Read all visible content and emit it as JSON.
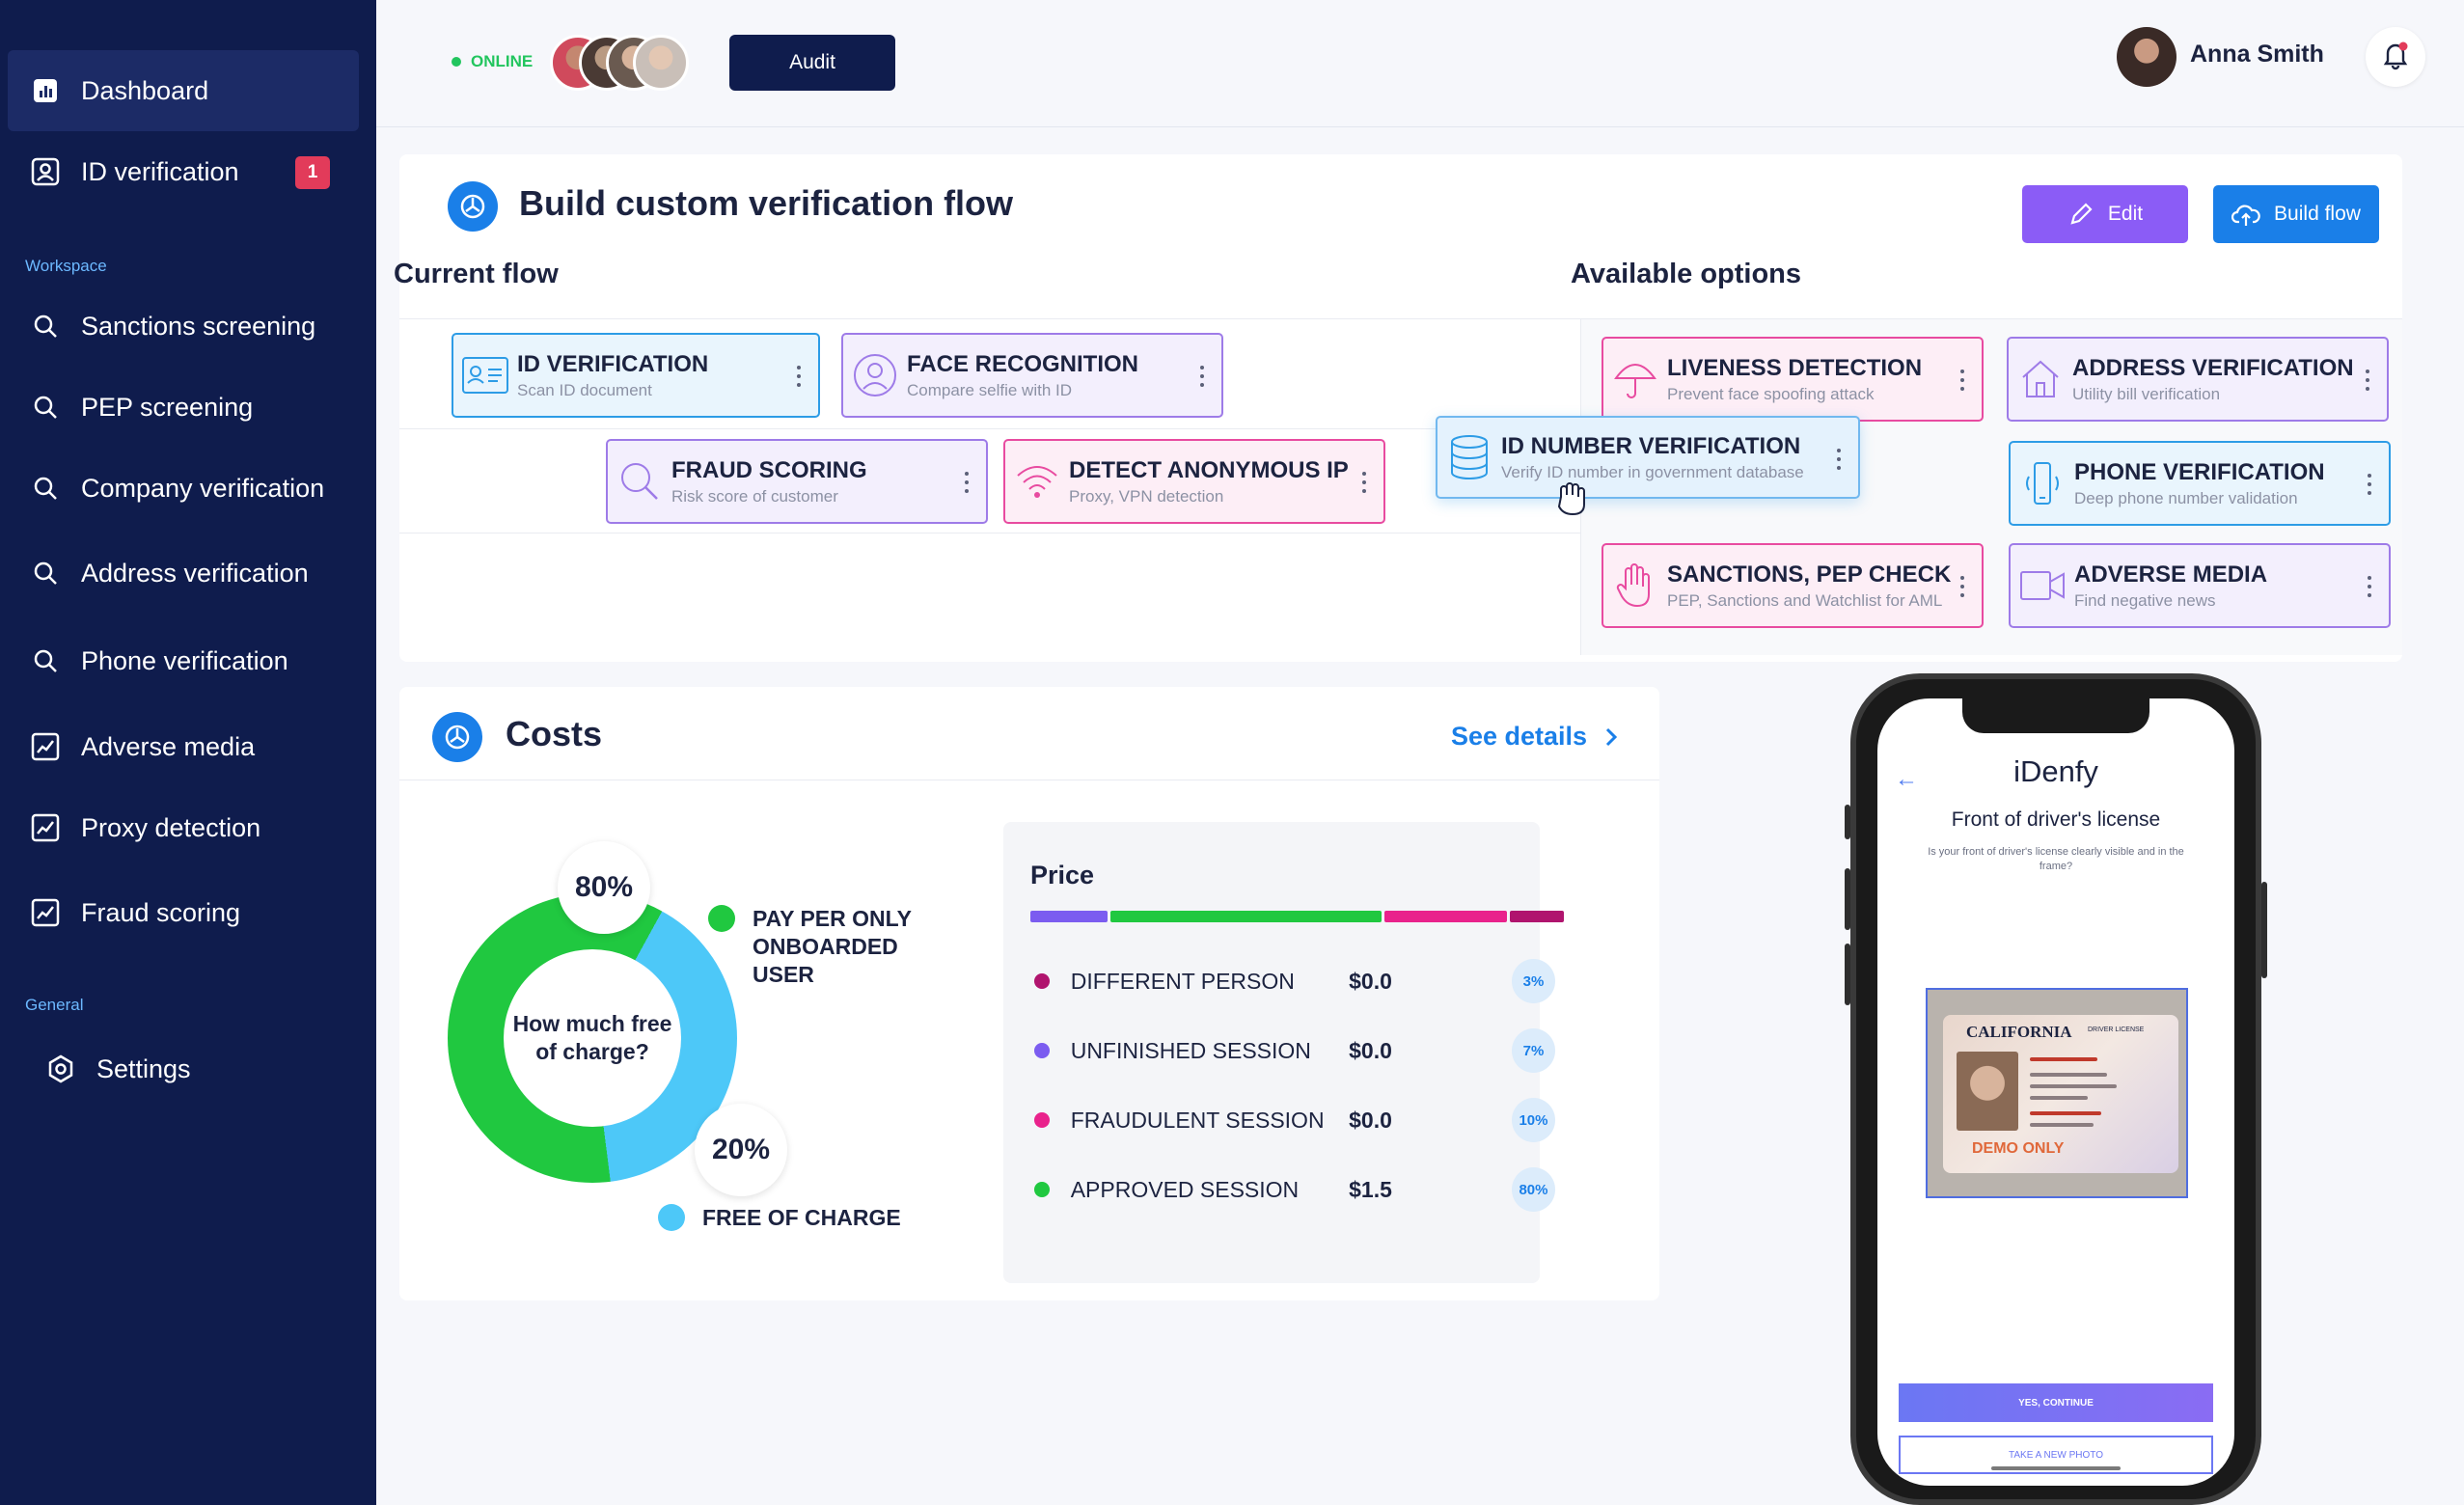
{
  "sidebar": {
    "items": [
      {
        "label": "Dashboard",
        "icon": "chart-icon"
      },
      {
        "label": "ID verification",
        "icon": "id-card-icon",
        "badge": "1"
      }
    ],
    "workspace_label": "Workspace",
    "workspace_items": [
      {
        "label": "Sanctions screening",
        "icon": "search-icon"
      },
      {
        "label": "PEP screening",
        "icon": "search-icon"
      },
      {
        "label": "Company verification",
        "icon": "search-icon"
      },
      {
        "label": "Address verification",
        "icon": "search-icon"
      },
      {
        "label": "Phone verification",
        "icon": "search-icon"
      },
      {
        "label": "Adverse media",
        "icon": "trend-icon"
      },
      {
        "label": "Proxy detection",
        "icon": "trend-icon"
      },
      {
        "label": "Fraud scoring",
        "icon": "trend-icon"
      }
    ],
    "general_label": "General",
    "general_items": [
      {
        "label": "Settings",
        "icon": "gear-icon"
      }
    ]
  },
  "topbar": {
    "status": "ONLINE",
    "audit_label": "Audit",
    "user_name": "Anna Smith"
  },
  "flow": {
    "title": "Build custom verification flow",
    "edit_label": "Edit",
    "build_label": "Build flow",
    "current_heading": "Current flow",
    "options_heading": "Available options",
    "current_modules": [
      {
        "title": "ID VERIFICATION",
        "subtitle": "Scan ID document",
        "icon": "id-card-icon"
      },
      {
        "title": "FACE RECOGNITION",
        "subtitle": "Compare selfie with ID",
        "icon": "face-icon"
      },
      {
        "title": "FRAUD SCORING",
        "subtitle": "Risk score of customer",
        "icon": "magnifier-icon"
      },
      {
        "title": "DETECT ANONYMOUS IP",
        "subtitle": "Proxy, VPN detection",
        "icon": "wifi-icon"
      }
    ],
    "dragging_module": {
      "title": "ID NUMBER VERIFICATION",
      "subtitle": "Verify ID number in government database",
      "icon": "database-icon"
    },
    "option_modules": [
      {
        "title": "LIVENESS DETECTION",
        "subtitle": "Prevent face spoofing attack",
        "icon": "umbrella-icon"
      },
      {
        "title": "ADDRESS VERIFICATION",
        "subtitle": "Utility bill verification",
        "icon": "house-icon"
      },
      {
        "title": "PHONE VERIFICATION",
        "subtitle": "Deep phone number validation",
        "icon": "phone-icon"
      },
      {
        "title": "SANCTIONS, PEP CHECK",
        "subtitle": "PEP, Sanctions and Watchlist for AML",
        "icon": "hand-icon"
      },
      {
        "title": "ADVERSE MEDIA",
        "subtitle": "Find negative news",
        "icon": "video-icon"
      }
    ]
  },
  "costs": {
    "title": "Costs",
    "see_details": "See details",
    "donut_center": "How much free of charge?",
    "pay_pct": "80%",
    "free_pct": "20%",
    "pay_label": "PAY PER ONLY ONBOARDED USER",
    "free_label": "FREE OF CHARGE",
    "price_title": "Price",
    "price_rows": [
      {
        "label": "DIFFERENT PERSON",
        "value": "$0.0",
        "pct": "3%",
        "color": "#b0146e"
      },
      {
        "label": "UNFINISHED SESSION",
        "value": "$0.0",
        "pct": "7%",
        "color": "#7b5cf0"
      },
      {
        "label": "FRAUDULENT SESSION",
        "value": "$0.0",
        "pct": "10%",
        "color": "#e9228c"
      },
      {
        "label": "APPROVED SESSION",
        "value": "$1.5",
        "pct": "80%",
        "color": "#20c840"
      }
    ]
  },
  "phone": {
    "app_name": "iDenfy",
    "screen_title": "Front of driver's license",
    "screen_subtitle": "Is your front of driver's license clearly visible and in the frame?",
    "card_state": "CALIFORNIA",
    "card_type": "DRIVER LICENSE",
    "card_watermark": "DEMO ONLY",
    "yes_label": "YES, CONTINUE",
    "take_label": "TAKE A NEW PHOTO"
  }
}
